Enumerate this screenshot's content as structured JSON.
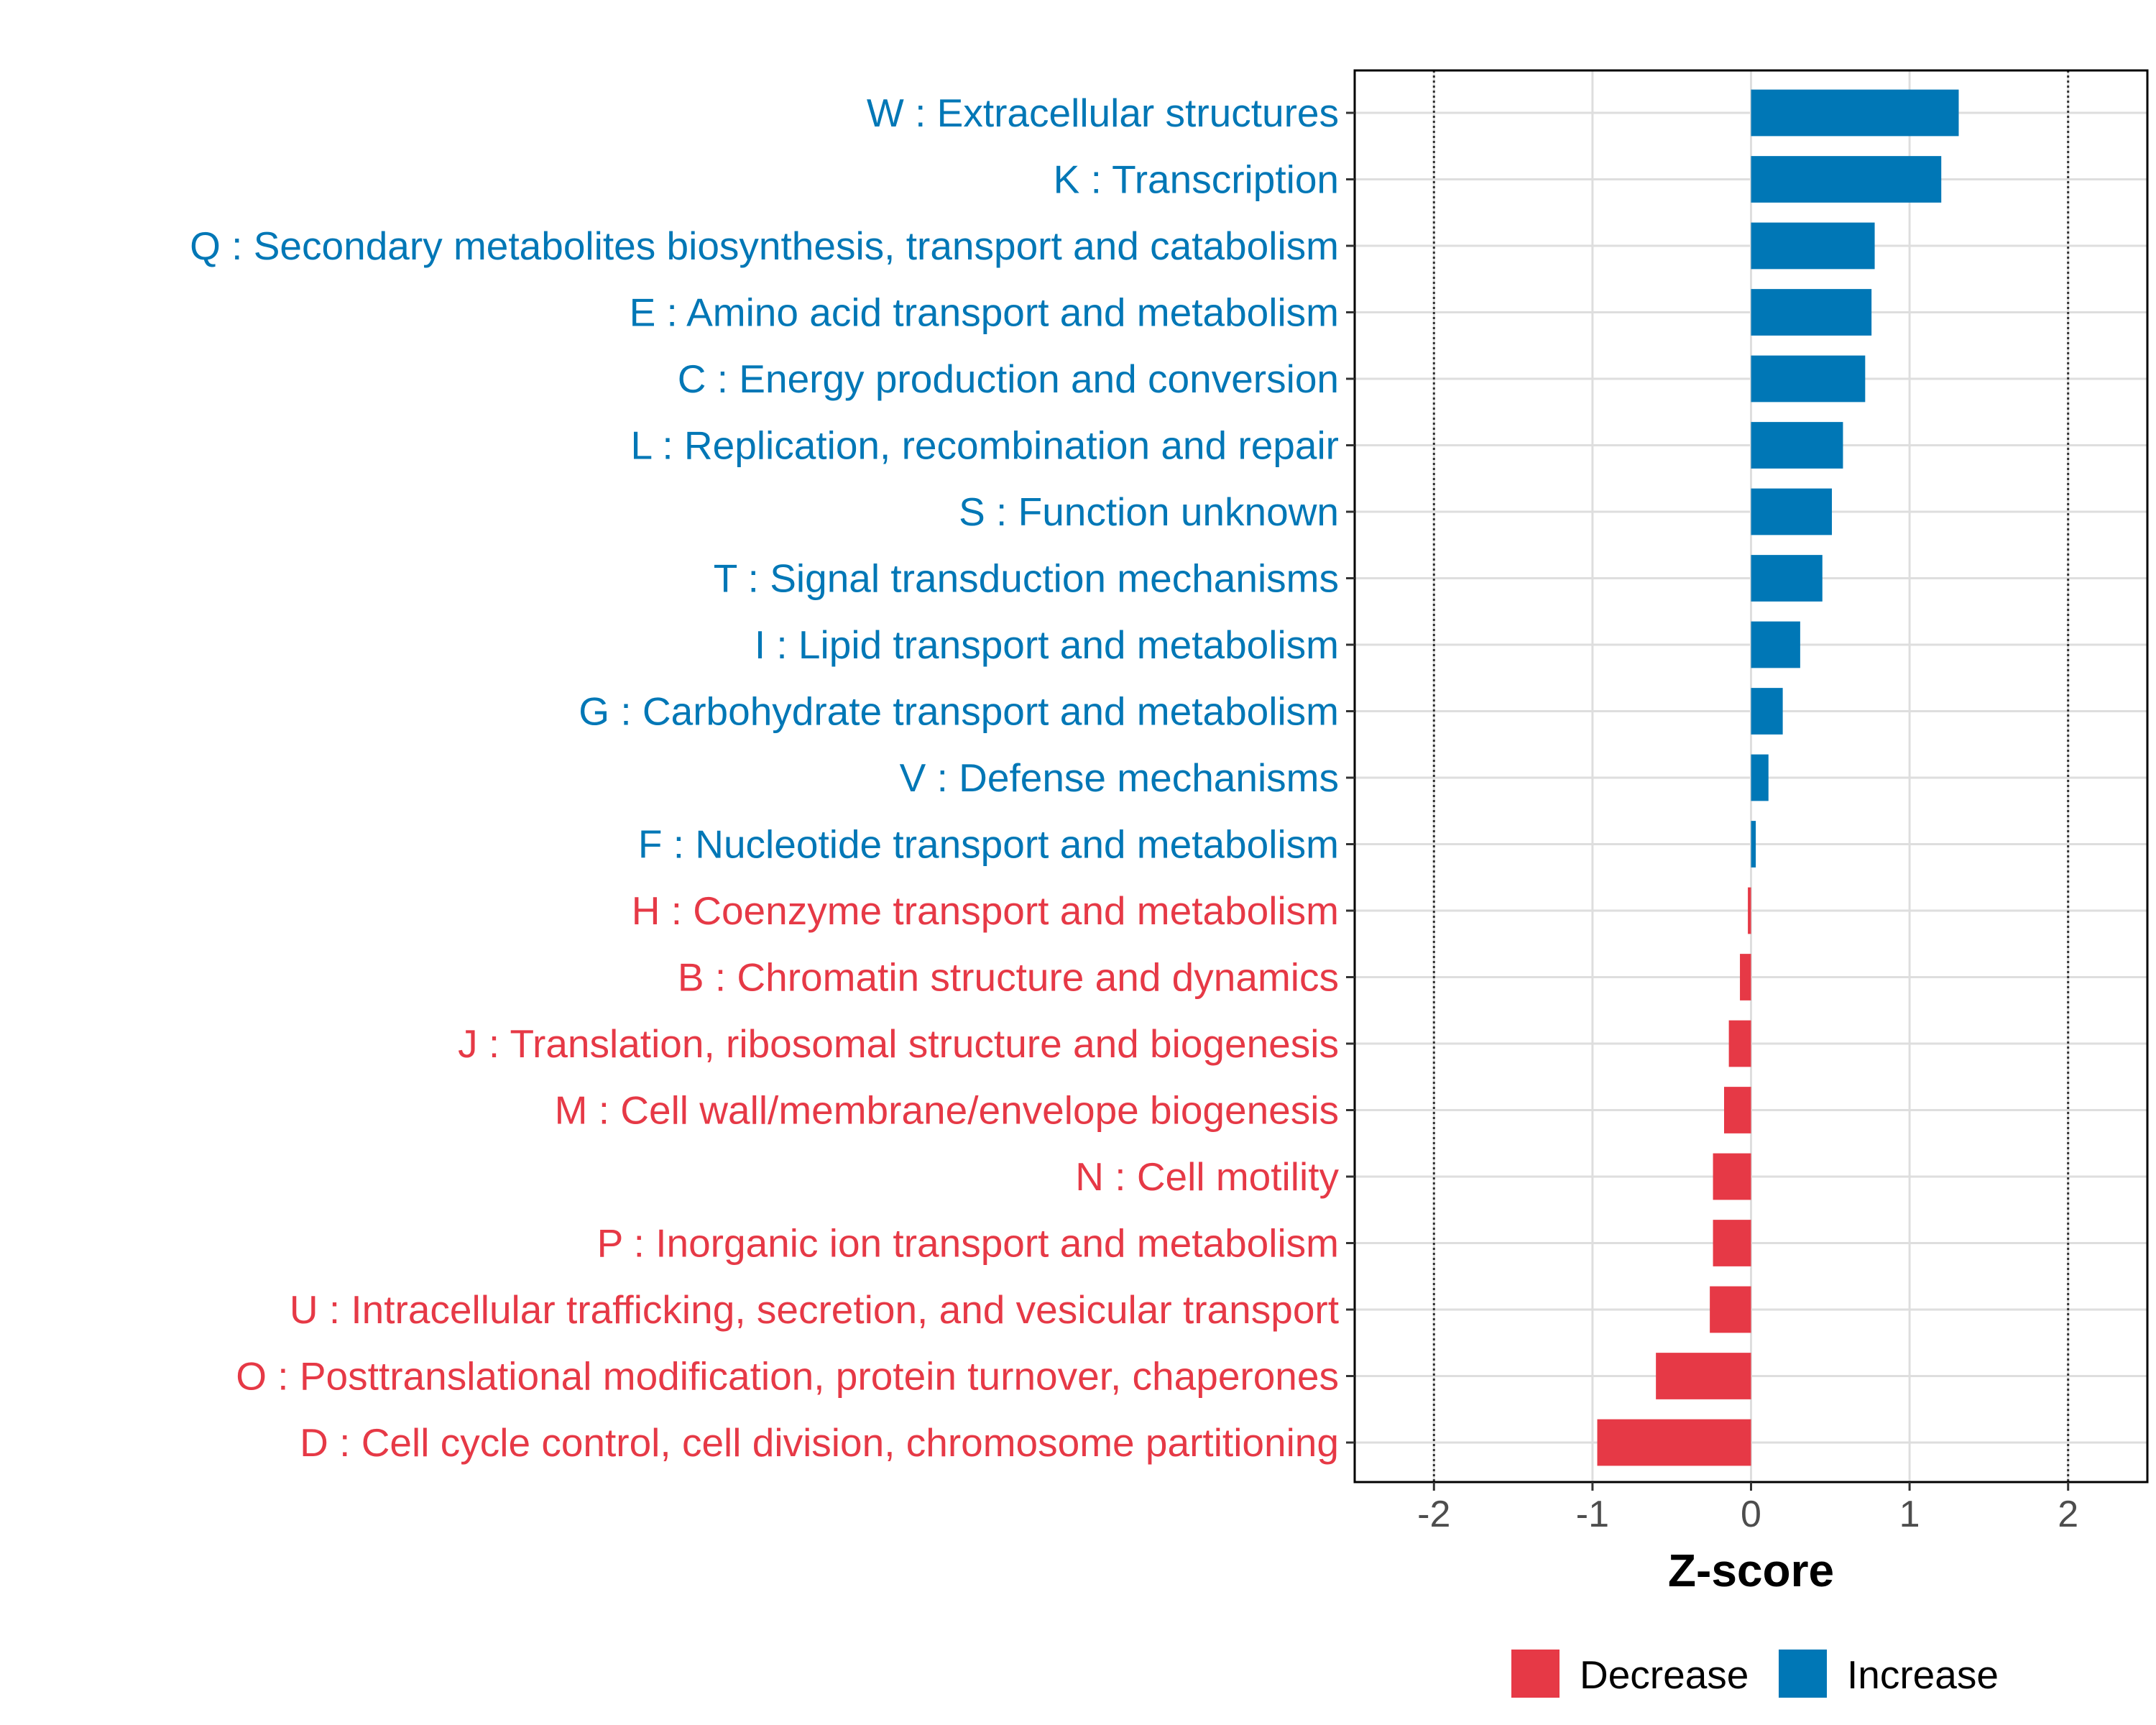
{
  "chart_data": {
    "type": "bar",
    "orientation": "horizontal",
    "title": "",
    "xlabel": "Z-score",
    "ylabel": "",
    "xlim": [
      -2.5,
      2.5
    ],
    "xticks": [
      -2,
      -1,
      0,
      1,
      2
    ],
    "xtick_labels": [
      "-2",
      "-1",
      "0",
      "1",
      "2"
    ],
    "reference_lines": [
      -2,
      2
    ],
    "grid": true,
    "legend_position": "bottom",
    "colors": {
      "Decrease": "#E63946",
      "Increase": "#0077B6"
    },
    "legend": [
      {
        "label": "Decrease",
        "color": "#E63946"
      },
      {
        "label": "Increase",
        "color": "#0077B6"
      }
    ],
    "bars": [
      {
        "label": "W : Extracellular structures",
        "value": 1.31,
        "group": "Increase"
      },
      {
        "label": "K : Transcription",
        "value": 1.2,
        "group": "Increase"
      },
      {
        "label": "Q : Secondary metabolites biosynthesis, transport and catabolism",
        "value": 0.78,
        "group": "Increase"
      },
      {
        "label": "E : Amino acid transport and metabolism",
        "value": 0.76,
        "group": "Increase"
      },
      {
        "label": "C : Energy production and conversion",
        "value": 0.72,
        "group": "Increase"
      },
      {
        "label": "L : Replication, recombination and repair",
        "value": 0.58,
        "group": "Increase"
      },
      {
        "label": "S : Function unknown",
        "value": 0.51,
        "group": "Increase"
      },
      {
        "label": "T : Signal transduction mechanisms",
        "value": 0.45,
        "group": "Increase"
      },
      {
        "label": "I : Lipid transport and metabolism",
        "value": 0.31,
        "group": "Increase"
      },
      {
        "label": "G : Carbohydrate transport and metabolism",
        "value": 0.2,
        "group": "Increase"
      },
      {
        "label": "V : Defense mechanisms",
        "value": 0.11,
        "group": "Increase"
      },
      {
        "label": "F : Nucleotide transport and metabolism",
        "value": 0.03,
        "group": "Increase"
      },
      {
        "label": "H : Coenzyme transport and metabolism",
        "value": -0.02,
        "group": "Decrease"
      },
      {
        "label": "B : Chromatin structure and dynamics",
        "value": -0.07,
        "group": "Decrease"
      },
      {
        "label": "J : Translation, ribosomal structure and biogenesis",
        "value": -0.14,
        "group": "Decrease"
      },
      {
        "label": "M : Cell wall/membrane/envelope biogenesis",
        "value": -0.17,
        "group": "Decrease"
      },
      {
        "label": "N : Cell motility",
        "value": -0.24,
        "group": "Decrease"
      },
      {
        "label": "P : Inorganic ion transport and metabolism",
        "value": -0.24,
        "group": "Decrease"
      },
      {
        "label": "U : Intracellular trafficking, secretion, and vesicular transport",
        "value": -0.26,
        "group": "Decrease"
      },
      {
        "label": "O : Posttranslational modification, protein turnover, chaperones",
        "value": -0.6,
        "group": "Decrease"
      },
      {
        "label": "D : Cell cycle control, cell division, chromosome partitioning",
        "value": -0.97,
        "group": "Decrease"
      }
    ]
  }
}
